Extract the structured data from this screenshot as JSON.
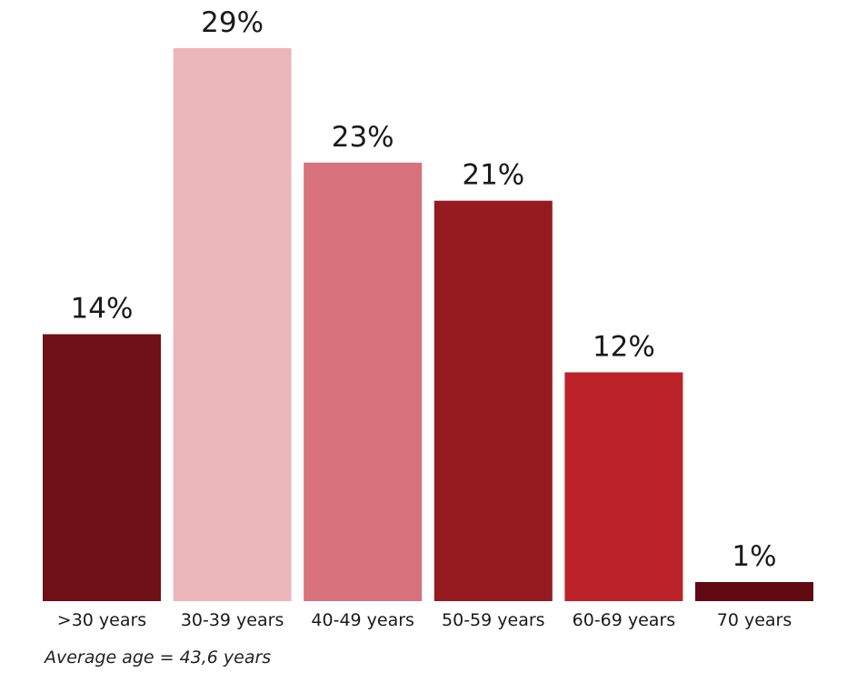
{
  "chart_data": {
    "type": "bar",
    "title": "",
    "xlabel": "",
    "ylabel": "",
    "ylim": [
      0,
      29
    ],
    "grid": false,
    "categories": [
      ">30 years",
      "30-39 years",
      "40-49 years",
      "50-59 years",
      "60-69 years",
      "70 years"
    ],
    "values": [
      14,
      29,
      23,
      21,
      12,
      1
    ],
    "data_labels": [
      "14%",
      "29%",
      "23%",
      "21%",
      "12%",
      "1%"
    ],
    "colors": [
      "#6f0f16",
      "#ebb7bb",
      "#d7717b",
      "#951b20",
      "#bb2229",
      "#610a14"
    ]
  },
  "footnote": "Average age = 43,6 years"
}
